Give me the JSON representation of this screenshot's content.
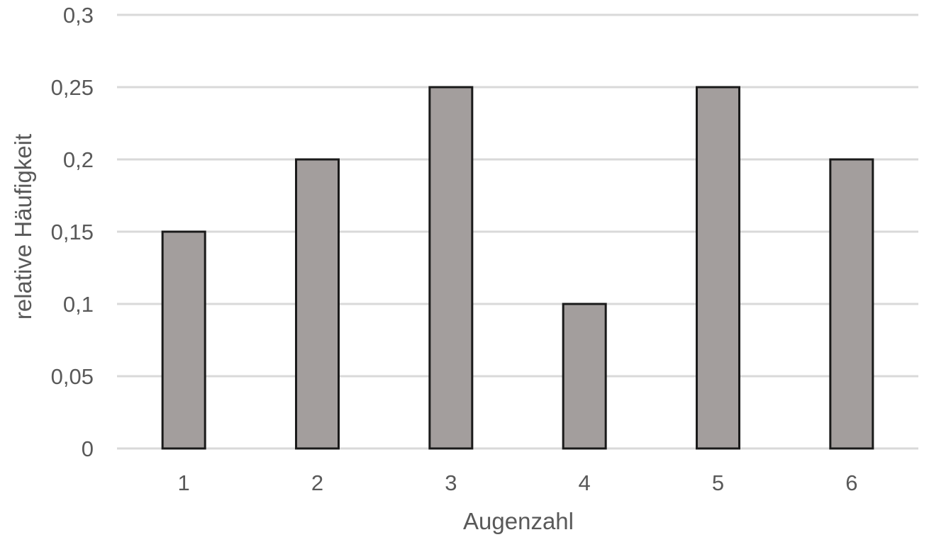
{
  "chart_data": {
    "type": "bar",
    "categories": [
      "1",
      "2",
      "3",
      "4",
      "5",
      "6"
    ],
    "values": [
      0.15,
      0.2,
      0.25,
      0.1,
      0.25,
      0.2
    ],
    "xlabel": "Augenzahl",
    "ylabel": "relative Häufigkeit",
    "ylim": [
      0,
      0.3
    ],
    "yticks": [
      0,
      0.05,
      0.1,
      0.15,
      0.2,
      0.25,
      0.3
    ],
    "ytick_labels": [
      "0",
      "0,05",
      "0,1",
      "0,15",
      "0,2",
      "0,25",
      "0,3"
    ],
    "grid": true,
    "legend": "none",
    "colors": {
      "bar_fill": "#a39e9d",
      "bar_stroke": "#1a1a1a",
      "grid": "#d9d9d9",
      "text": "#595959"
    }
  }
}
